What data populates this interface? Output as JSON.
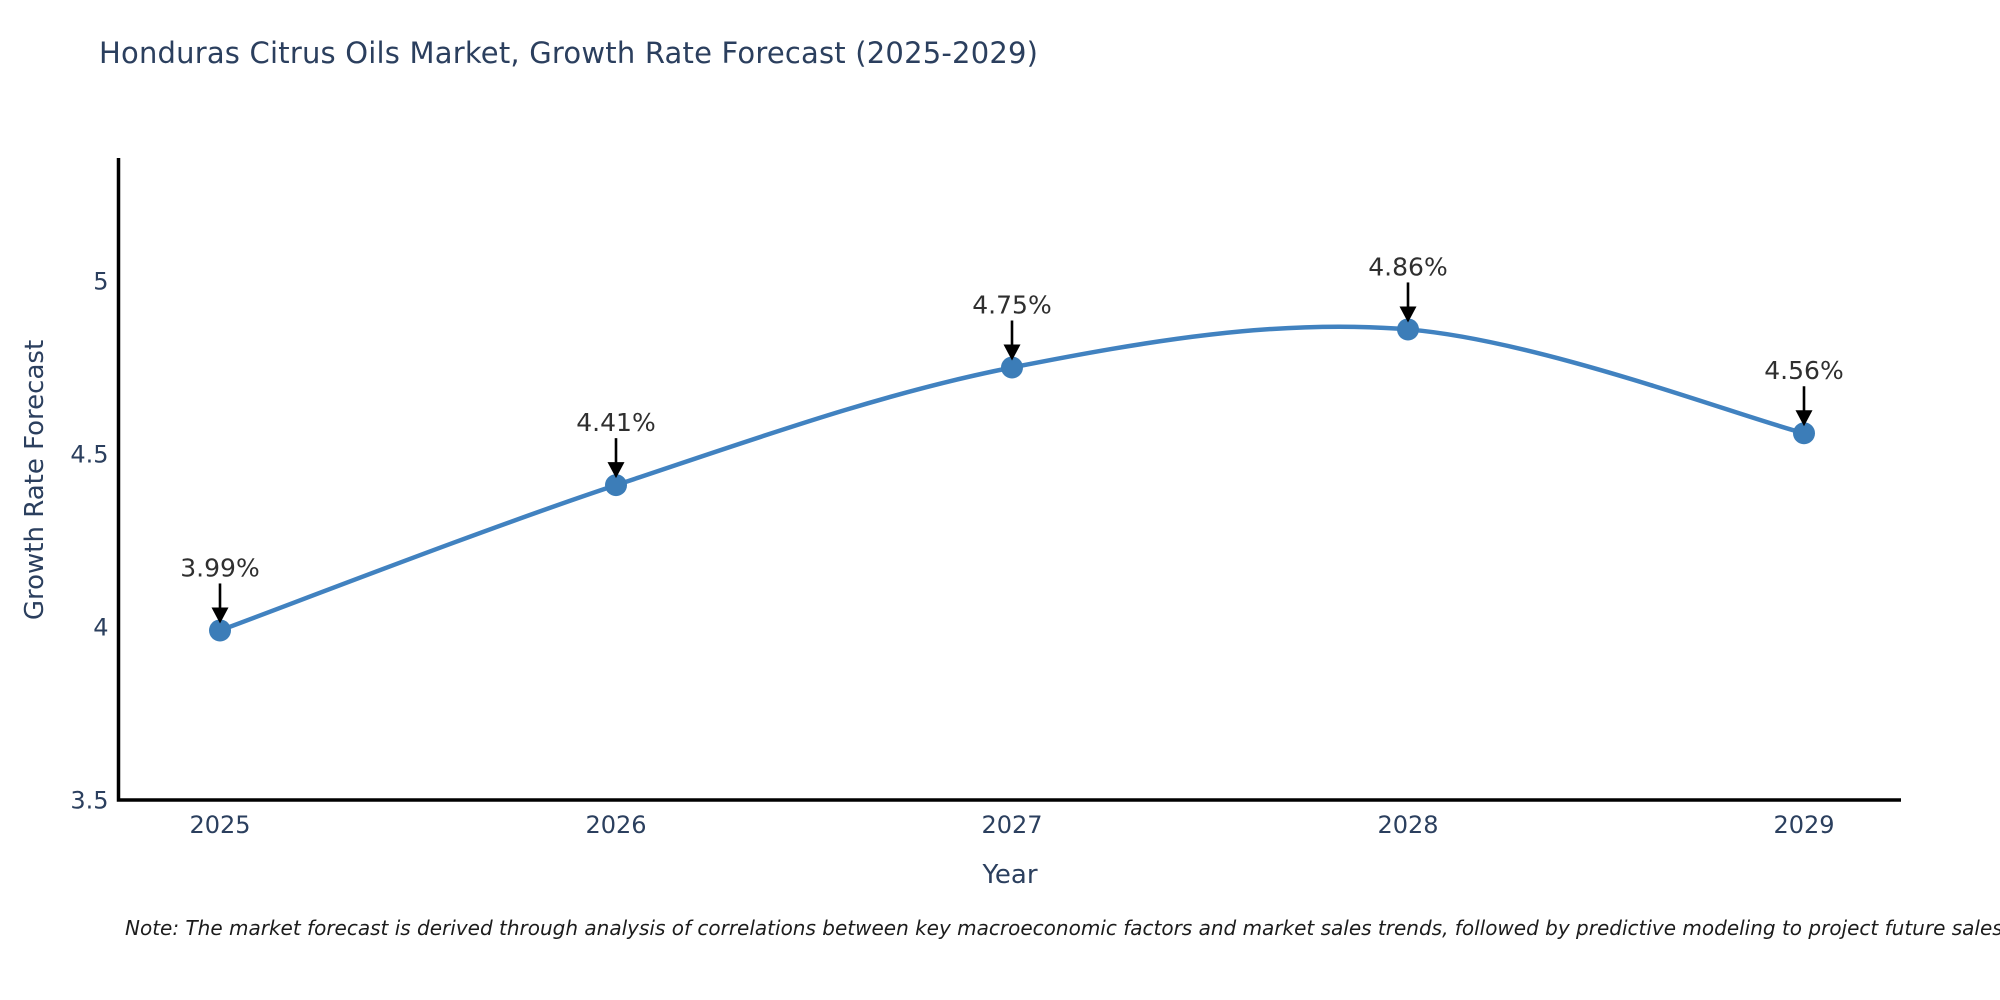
{
  "title": "Honduras Citrus Oils Market, Growth Rate Forecast (2025-2029)",
  "chart_data": {
    "type": "line",
    "title": "Honduras Citrus Oils Market, Growth Rate Forecast (2025-2029)",
    "x": [
      2025,
      2026,
      2027,
      2028,
      2029
    ],
    "x_tick_labels": [
      "2025",
      "2026",
      "2027",
      "2028",
      "2029"
    ],
    "series": [
      {
        "name": "Growth Rate Forecast",
        "values": [
          3.99,
          4.41,
          4.75,
          4.86,
          4.56
        ],
        "point_labels": [
          "3.99%",
          "4.41%",
          "4.75%",
          "4.86%",
          "4.56%"
        ]
      }
    ],
    "xlabel": "Year",
    "ylabel": "Growth Rate Forecast",
    "y_ticks": [
      3.5,
      4,
      4.5,
      5
    ],
    "y_tick_labels": [
      "3.5",
      "4",
      "4.5",
      "5"
    ],
    "ylim": [
      3.5,
      5.37
    ],
    "grid": false,
    "legend": "none",
    "line_style": "spline",
    "annotation_style": "value-label-with-down-arrow",
    "colors": {
      "line": "#4182c0",
      "marker": "#3c7db8",
      "arrow": "#000000",
      "axis": "#000000",
      "heading_text": "#2b3f5e",
      "annotation_text": "#2f2f2f"
    }
  },
  "note": "Note: The market forecast is derived through analysis of correlations between key macroeconomic factors and market sales trends, followed by predictive modeling to project future sales"
}
